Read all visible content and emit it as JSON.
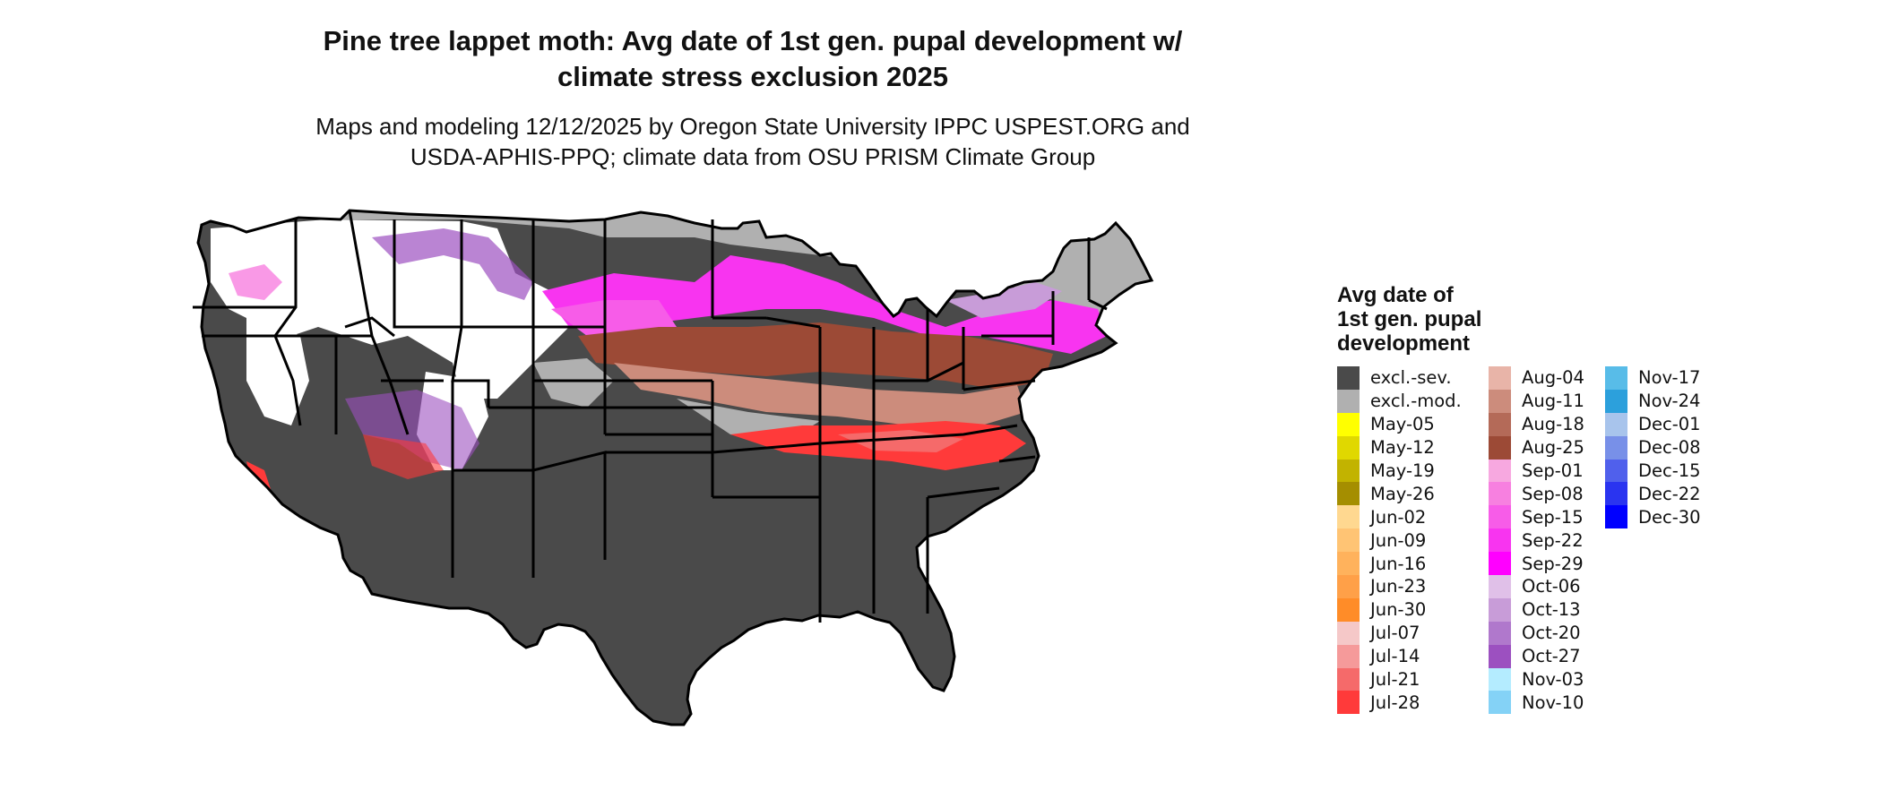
{
  "title_lines": [
    "Pine tree lappet moth: Avg date of 1st gen. pupal development w/",
    "climate stress exclusion 2025"
  ],
  "subtitle_lines": [
    "Maps and modeling 12/12/2025 by Oregon State University IPPC USPEST.ORG and",
    "USDA-APHIS-PPQ; climate data from OSU PRISM Climate Group"
  ],
  "legend": {
    "title_lines": [
      "Avg date of",
      "1st gen. pupal",
      "development"
    ],
    "columns": [
      [
        {
          "label": "excl.-sev.",
          "color": "#4a4a4a"
        },
        {
          "label": "excl.-mod.",
          "color": "#b0b0b0"
        },
        {
          "label": "May-05",
          "color": "#ffff00"
        },
        {
          "label": "May-12",
          "color": "#e0d800"
        },
        {
          "label": "May-19",
          "color": "#c2b300"
        },
        {
          "label": "May-26",
          "color": "#a58e00"
        },
        {
          "label": "Jun-02",
          "color": "#ffd890"
        },
        {
          "label": "Jun-09",
          "color": "#ffc474"
        },
        {
          "label": "Jun-16",
          "color": "#ffb25c"
        },
        {
          "label": "Jun-23",
          "color": "#ffa048"
        },
        {
          "label": "Jun-30",
          "color": "#ff8c28"
        },
        {
          "label": "Jul-07",
          "color": "#f5c8c8"
        },
        {
          "label": "Jul-14",
          "color": "#f59a9a"
        },
        {
          "label": "Jul-21",
          "color": "#f56a6a"
        },
        {
          "label": "Jul-28",
          "color": "#ff3a3a"
        }
      ],
      [
        {
          "label": "Aug-04",
          "color": "#e8b4a8"
        },
        {
          "label": "Aug-11",
          "color": "#cc8c7c"
        },
        {
          "label": "Aug-18",
          "color": "#b46a58"
        },
        {
          "label": "Aug-25",
          "color": "#9c4a36"
        },
        {
          "label": "Sep-01",
          "color": "#f7a8e0"
        },
        {
          "label": "Sep-08",
          "color": "#f780e0"
        },
        {
          "label": "Sep-15",
          "color": "#f75ce8"
        },
        {
          "label": "Sep-22",
          "color": "#f834f0"
        },
        {
          "label": "Sep-29",
          "color": "#ff00ff"
        },
        {
          "label": "Oct-06",
          "color": "#e0c0e8"
        },
        {
          "label": "Oct-13",
          "color": "#c89cd8"
        },
        {
          "label": "Oct-20",
          "color": "#b078cc"
        },
        {
          "label": "Oct-27",
          "color": "#9c50c0"
        },
        {
          "label": "Nov-03",
          "color": "#b4ecff"
        },
        {
          "label": "Nov-10",
          "color": "#84d2f6"
        }
      ],
      [
        {
          "label": "Nov-17",
          "color": "#58bce8"
        },
        {
          "label": "Nov-24",
          "color": "#2ca0dc"
        },
        {
          "label": "Dec-01",
          "color": "#a8c4ec"
        },
        {
          "label": "Dec-08",
          "color": "#7890e8"
        },
        {
          "label": "Dec-15",
          "color": "#5060ec"
        },
        {
          "label": "Dec-22",
          "color": "#2a34f0"
        },
        {
          "label": "Dec-30",
          "color": "#0000ff"
        }
      ]
    ]
  }
}
